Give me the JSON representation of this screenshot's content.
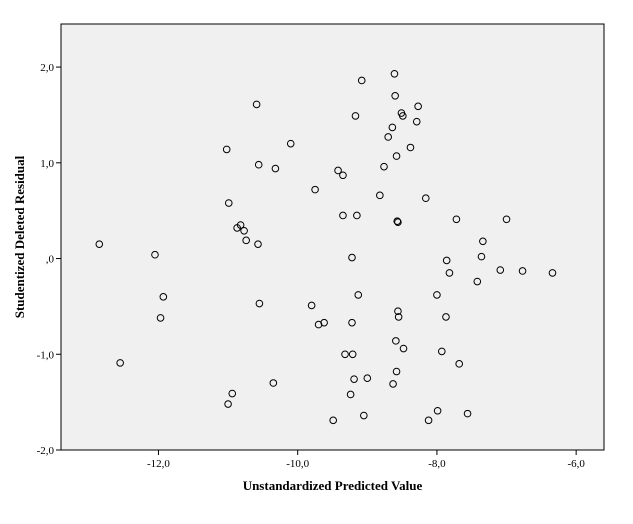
{
  "chart_data": {
    "type": "scatter",
    "title": "",
    "xlabel": "Unstandardized Predicted Value",
    "ylabel": "Studentized Deleted Residual",
    "xlim": [
      -13.4,
      -5.6
    ],
    "ylim": [
      -2.0,
      2.45
    ],
    "x_ticks": [
      -12.0,
      -10.0,
      -8.0,
      -6.0
    ],
    "x_tick_labels": [
      "-12,0",
      "-10,0",
      "-8,0",
      "-6,0"
    ],
    "y_ticks": [
      -2.0,
      -1.0,
      0.0,
      1.0,
      2.0
    ],
    "y_tick_labels": [
      "-2,0",
      "-1,0",
      ",0",
      "1,0",
      "2,0"
    ],
    "grid": false,
    "legend": "none",
    "colors": {
      "plot_background": "#f0f0f0",
      "marker_stroke": "#000000",
      "axis": "#000000"
    },
    "points": [
      {
        "x": -12.85,
        "y": 0.15
      },
      {
        "x": -12.55,
        "y": -1.09
      },
      {
        "x": -12.05,
        "y": 0.04
      },
      {
        "x": -11.97,
        "y": -0.62
      },
      {
        "x": -11.93,
        "y": -0.4
      },
      {
        "x": -11.02,
        "y": 1.14
      },
      {
        "x": -10.99,
        "y": 0.58
      },
      {
        "x": -11.0,
        "y": -1.52
      },
      {
        "x": -10.94,
        "y": -1.41
      },
      {
        "x": -10.87,
        "y": 0.32
      },
      {
        "x": -10.82,
        "y": 0.35
      },
      {
        "x": -10.77,
        "y": 0.29
      },
      {
        "x": -10.74,
        "y": 0.19
      },
      {
        "x": -10.59,
        "y": 1.61
      },
      {
        "x": -10.57,
        "y": 0.15
      },
      {
        "x": -10.56,
        "y": 0.98
      },
      {
        "x": -10.55,
        "y": -0.47
      },
      {
        "x": -10.35,
        "y": -1.3
      },
      {
        "x": -10.32,
        "y": 0.94
      },
      {
        "x": -10.1,
        "y": 1.2
      },
      {
        "x": -9.8,
        "y": -0.49
      },
      {
        "x": -9.75,
        "y": 0.72
      },
      {
        "x": -9.7,
        "y": -0.69
      },
      {
        "x": -9.62,
        "y": -0.67
      },
      {
        "x": -9.49,
        "y": -1.69
      },
      {
        "x": -9.42,
        "y": 0.92
      },
      {
        "x": -9.35,
        "y": 0.87
      },
      {
        "x": -9.35,
        "y": 0.45
      },
      {
        "x": -9.32,
        "y": -1.0
      },
      {
        "x": -9.24,
        "y": -1.42
      },
      {
        "x": -9.22,
        "y": 0.01
      },
      {
        "x": -9.22,
        "y": -0.67
      },
      {
        "x": -9.21,
        "y": -1.0
      },
      {
        "x": -9.19,
        "y": -1.26
      },
      {
        "x": -9.17,
        "y": 1.49
      },
      {
        "x": -9.15,
        "y": 0.45
      },
      {
        "x": -9.13,
        "y": -0.38
      },
      {
        "x": -9.08,
        "y": 1.86
      },
      {
        "x": -9.05,
        "y": -1.64
      },
      {
        "x": -9.0,
        "y": -1.25
      },
      {
        "x": -8.82,
        "y": 0.66
      },
      {
        "x": -8.76,
        "y": 0.96
      },
      {
        "x": -8.7,
        "y": 1.27
      },
      {
        "x": -8.64,
        "y": 1.37
      },
      {
        "x": -8.63,
        "y": -1.31
      },
      {
        "x": -8.61,
        "y": 1.93
      },
      {
        "x": -8.6,
        "y": 1.7
      },
      {
        "x": -8.59,
        "y": -0.86
      },
      {
        "x": -8.58,
        "y": -1.18
      },
      {
        "x": -8.58,
        "y": 1.07
      },
      {
        "x": -8.57,
        "y": 0.39
      },
      {
        "x": -8.56,
        "y": 0.38
      },
      {
        "x": -8.56,
        "y": -0.55
      },
      {
        "x": -8.55,
        "y": -0.61
      },
      {
        "x": -8.51,
        "y": 1.52
      },
      {
        "x": -8.49,
        "y": 1.49
      },
      {
        "x": -8.48,
        "y": -0.94
      },
      {
        "x": -8.38,
        "y": 1.16
      },
      {
        "x": -8.29,
        "y": 1.43
      },
      {
        "x": -8.27,
        "y": 1.59
      },
      {
        "x": -8.16,
        "y": 0.63
      },
      {
        "x": -8.12,
        "y": -1.69
      },
      {
        "x": -7.99,
        "y": -1.59
      },
      {
        "x": -8.0,
        "y": -0.38
      },
      {
        "x": -7.93,
        "y": -0.97
      },
      {
        "x": -7.87,
        "y": -0.61
      },
      {
        "x": -7.86,
        "y": -0.02
      },
      {
        "x": -7.82,
        "y": -0.15
      },
      {
        "x": -7.68,
        "y": -1.1
      },
      {
        "x": -7.72,
        "y": 0.41
      },
      {
        "x": -7.56,
        "y": -1.62
      },
      {
        "x": -7.42,
        "y": -0.24
      },
      {
        "x": -7.36,
        "y": 0.02
      },
      {
        "x": -7.34,
        "y": 0.18
      },
      {
        "x": -7.09,
        "y": -0.12
      },
      {
        "x": -7.0,
        "y": 0.41
      },
      {
        "x": -6.77,
        "y": -0.13
      },
      {
        "x": -6.34,
        "y": -0.15
      }
    ]
  }
}
